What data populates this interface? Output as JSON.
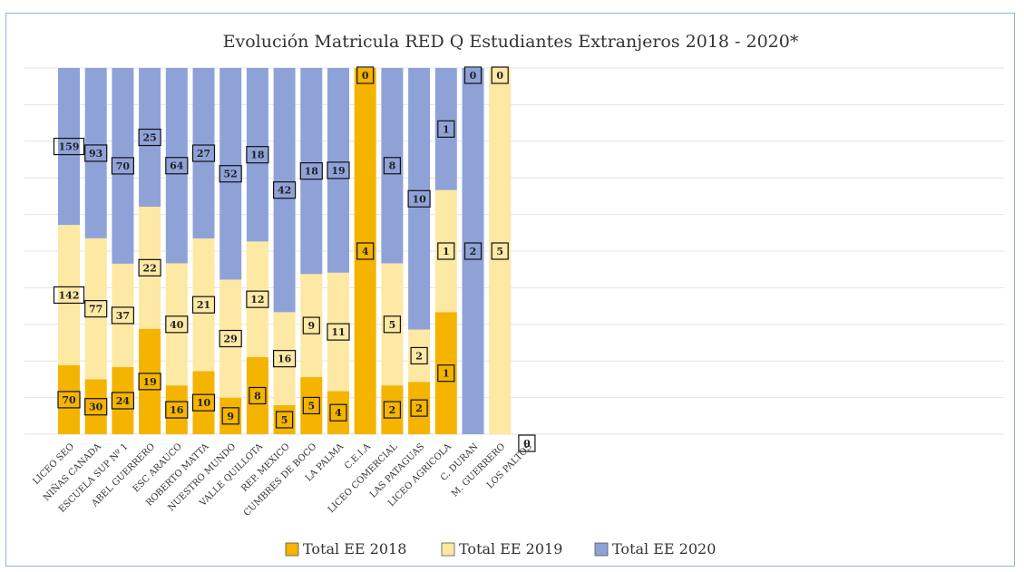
{
  "chart_data": {
    "type": "bar",
    "stacked": true,
    "normalized": true,
    "title": "Evolución Matricula RED Q Estudiantes Extranjeros 2018 - 2020*",
    "xlabel": "",
    "ylabel": "",
    "grid": true,
    "legend_position": "bottom",
    "categories": [
      "LICEO SEO",
      "NIÑAS CANADA",
      "ESCUELA SUP Nº 1",
      "ABEL GUERRERO",
      "ESC ARAUCO",
      "ROBERTO MATTA",
      "NUESTRO MUNDO",
      "VALLE QUILLOTA",
      "REP. MEXICO",
      "CUMBRES DE BOCO",
      "LA PALMA",
      "C.E.I.A",
      "LICEO COMERCIAL",
      "LAS PATAGUAS",
      "LICEO AGRICOLA",
      "C. DURAN",
      "M. GUERRERO",
      "LOS PALTOS"
    ],
    "series": [
      {
        "name": "Total EE 2018",
        "color": "#f4b400",
        "values": [
          70,
          30,
          24,
          19,
          16,
          10,
          9,
          8,
          5,
          5,
          4,
          4,
          2,
          2,
          1,
          0,
          0,
          0
        ]
      },
      {
        "name": "Total EE 2019",
        "color": "#fde8a4",
        "values": [
          142,
          77,
          37,
          22,
          40,
          21,
          29,
          12,
          16,
          9,
          11,
          0,
          5,
          2,
          1,
          0,
          5,
          0
        ]
      },
      {
        "name": "Total EE 2020",
        "color": "#8fa2d8",
        "values": [
          159,
          93,
          70,
          25,
          64,
          27,
          52,
          18,
          42,
          18,
          19,
          0,
          8,
          10,
          1,
          2,
          0,
          0
        ]
      }
    ]
  }
}
